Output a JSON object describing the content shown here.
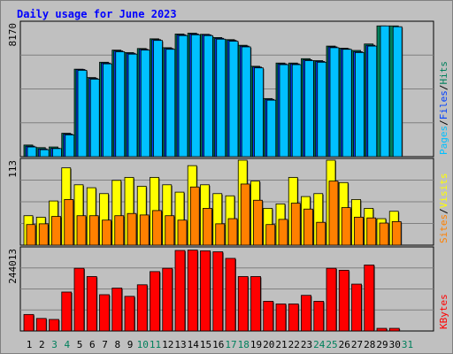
{
  "chart_data": [
    {
      "type": "bar",
      "title": "Daily usage for June 2023",
      "ymax_label": "8170",
      "series": [
        {
          "name": "Hits",
          "color": "#00805c",
          "values": [
            720,
            560,
            600,
            1450,
            5420,
            4900,
            5850,
            6600,
            6450,
            6700,
            7300,
            6750,
            7600,
            7650,
            7580,
            7380,
            7250,
            6900,
            5600,
            3600,
            5800,
            5800,
            6070,
            5950,
            6850,
            6720,
            6580,
            6980,
            8100,
            8100,
            0
          ]
        },
        {
          "name": "Files",
          "color": "#0040ff",
          "values": [
            650,
            480,
            520,
            1400,
            5400,
            4850,
            5800,
            6550,
            6400,
            6650,
            7250,
            6700,
            7550,
            7600,
            7550,
            7330,
            7200,
            6850,
            5550,
            3550,
            5750,
            5750,
            6000,
            5900,
            6800,
            6680,
            6500,
            6900,
            0,
            0,
            0
          ]
        },
        {
          "name": "Pages",
          "color": "#00c0ff",
          "values": [
            600,
            430,
            500,
            1350,
            5350,
            4800,
            5750,
            6500,
            6350,
            6600,
            7200,
            6650,
            7500,
            7550,
            7500,
            7280,
            7150,
            6800,
            5500,
            3500,
            5700,
            5700,
            5950,
            5850,
            6750,
            6650,
            6450,
            6850,
            8100,
            8050,
            0
          ]
        }
      ],
      "series_label_order": [
        "Pages",
        "Files",
        "Hits"
      ]
    },
    {
      "type": "bar",
      "ymax_label": "113",
      "series": [
        {
          "name": "Visits",
          "color": "#ffff00",
          "values": [
            40,
            38,
            60,
            105,
            82,
            78,
            70,
            88,
            92,
            80,
            92,
            82,
            72,
            108,
            82,
            70,
            67,
            116,
            87,
            50,
            56,
            92,
            66,
            70,
            116,
            85,
            62,
            50,
            36,
            46,
            0
          ]
        },
        {
          "name": "Sites",
          "color": "#ff8000",
          "values": [
            28,
            29,
            39,
            62,
            40,
            40,
            34,
            40,
            43,
            41,
            47,
            40,
            34,
            79,
            50,
            29,
            36,
            83,
            61,
            28,
            35,
            57,
            49,
            31,
            87,
            51,
            38,
            37,
            30,
            32,
            0
          ]
        }
      ],
      "series_label_order": [
        "Sites",
        "Visits"
      ]
    },
    {
      "type": "bar",
      "ymax_label": "244013",
      "series": [
        {
          "name": "KBytes",
          "color": "#ff0000",
          "values": [
            50000,
            38000,
            35000,
            118000,
            190000,
            165000,
            110000,
            130000,
            105000,
            140000,
            180000,
            190000,
            244000,
            245000,
            243000,
            240000,
            220000,
            165000,
            165000,
            90000,
            82000,
            82000,
            108000,
            90000,
            190000,
            184000,
            142000,
            200000,
            8000,
            8000,
            0
          ]
        }
      ],
      "series_label_order": [
        "KBytes"
      ]
    }
  ],
  "days": [
    "1",
    "2",
    "3",
    "4",
    "5",
    "6",
    "7",
    "8",
    "9",
    "10",
    "11",
    "12",
    "13",
    "14",
    "15",
    "16",
    "17",
    "18",
    "19",
    "20",
    "21",
    "22",
    "23",
    "24",
    "25",
    "26",
    "27",
    "28",
    "29",
    "30",
    "31"
  ],
  "weekend_days": [
    3,
    4,
    10,
    11,
    17,
    18,
    24,
    25,
    31
  ],
  "colors": {
    "title": "#0000ff",
    "weekday": "#000000",
    "weekend": "#00805c",
    "panel": "#c0c0c0",
    "grid": "#808080",
    "separator": "#000000"
  }
}
